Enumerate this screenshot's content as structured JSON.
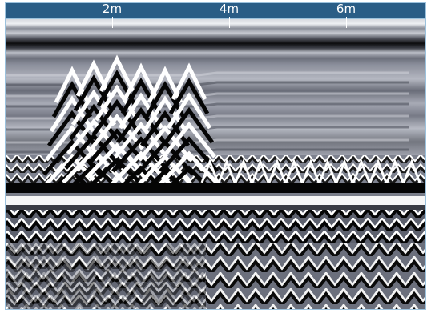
{
  "radargram": {
    "distance_ticks": [
      {
        "label": "2m",
        "value": 2
      },
      {
        "label": "4m",
        "value": 4
      },
      {
        "label": "6m",
        "value": 6
      }
    ],
    "colors": {
      "scale_bar": "#2a5d86",
      "trace_dark": "#050505",
      "trace_light": "#ffffff",
      "trace_mid": "#7f8391"
    }
  }
}
